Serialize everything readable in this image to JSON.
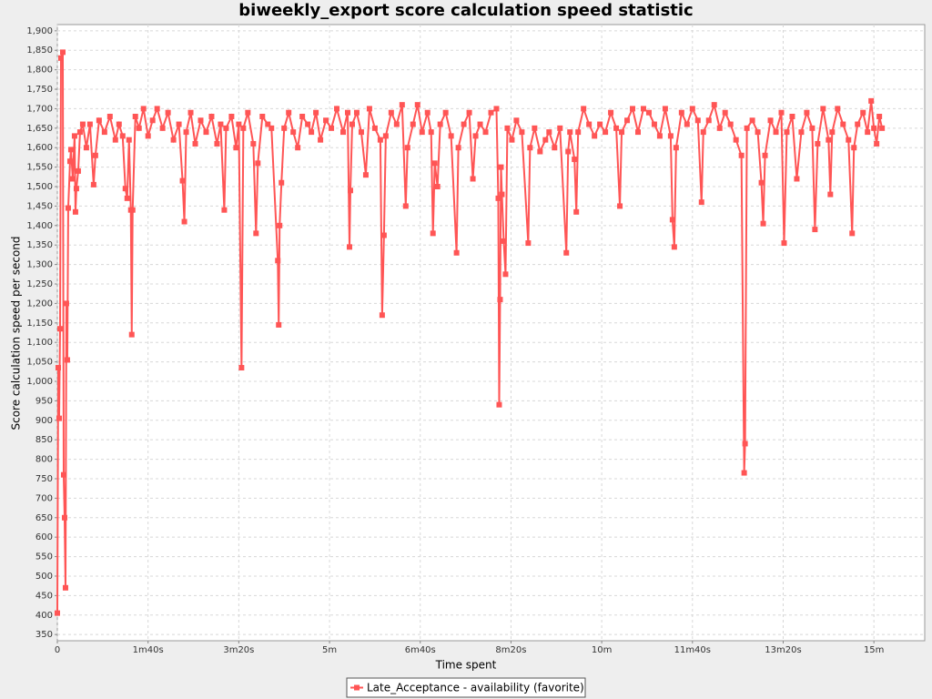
{
  "chart_data": {
    "type": "line",
    "title": "biweekly_export score calculation speed statistic",
    "xlabel": "Time spent",
    "ylabel": "Score calculation speed per second",
    "x": [
      0,
      1,
      2,
      3,
      4,
      6,
      7,
      8,
      9,
      10,
      11,
      12,
      14,
      15,
      17,
      19,
      20,
      21,
      23,
      25,
      28,
      32,
      36,
      40,
      42,
      46,
      52,
      58,
      64,
      68,
      72,
      75,
      77,
      79,
      81,
      82,
      83,
      86,
      90,
      95,
      100,
      105,
      110,
      116,
      122,
      128,
      134,
      138,
      140,
      142,
      147,
      152,
      158,
      164,
      170,
      176,
      180,
      184,
      186,
      192,
      197,
      200,
      203,
      205,
      210,
      216,
      219,
      221,
      226,
      232,
      236,
      243,
      244,
      245,
      247,
      250,
      255,
      260,
      265,
      270,
      276,
      280,
      285,
      290,
      296,
      302,
      308,
      315,
      320,
      322,
      323,
      325,
      330,
      335,
      340,
      344,
      350,
      356,
      358,
      360,
      362,
      368,
      374,
      380,
      384,
      386,
      392,
      397,
      402,
      408,
      412,
      414,
      416,
      419,
      422,
      428,
      434,
      440,
      442,
      448,
      454,
      458,
      461,
      466,
      472,
      478,
      484,
      486,
      487,
      488,
      489,
      490,
      492,
      494,
      496,
      501,
      506,
      512,
      519,
      521,
      526,
      532,
      538,
      542,
      548,
      554,
      561,
      563,
      565,
      570,
      572,
      574,
      580,
      586,
      592,
      598,
      604,
      610,
      616,
      620,
      622,
      628,
      634,
      640,
      646,
      652,
      658,
      664,
      670,
      676,
      678,
      680,
      682,
      688,
      694,
      700,
      706,
      710,
      712,
      718,
      724,
      730,
      736,
      742,
      748,
      754,
      757,
      758,
      760,
      766,
      772,
      776,
      778,
      780,
      786,
      792,
      798,
      801,
      804,
      810,
      815,
      820,
      826,
      832,
      835,
      838,
      844,
      850,
      852,
      854,
      860,
      866,
      872,
      876,
      878,
      882,
      888,
      893,
      897,
      900,
      903,
      906,
      909
    ],
    "series": [
      {
        "name": "Late_Acceptance - availability (favorite)",
        "color": "#ff5555",
        "values": [
          405,
          1035,
          905,
          1135,
          1830,
          1845,
          760,
          650,
          470,
          1200,
          1055,
          1445,
          1565,
          1595,
          1520,
          1630,
          1435,
          1495,
          1540,
          1640,
          1660,
          1600,
          1660,
          1505,
          1580,
          1670,
          1640,
          1680,
          1620,
          1660,
          1630,
          1495,
          1470,
          1620,
          1440,
          1120,
          1440,
          1680,
          1650,
          1700,
          1630,
          1670,
          1700,
          1650,
          1690,
          1620,
          1660,
          1515,
          1410,
          1640,
          1690,
          1610,
          1670,
          1640,
          1680,
          1610,
          1660,
          1440,
          1650,
          1680,
          1600,
          1660,
          1035,
          1650,
          1690,
          1610,
          1380,
          1560,
          1680,
          1660,
          1650,
          1310,
          1145,
          1400,
          1510,
          1650,
          1690,
          1640,
          1600,
          1680,
          1660,
          1640,
          1690,
          1620,
          1670,
          1650,
          1700,
          1640,
          1690,
          1345,
          1490,
          1660,
          1690,
          1640,
          1530,
          1700,
          1650,
          1620,
          1170,
          1375,
          1630,
          1690,
          1660,
          1710,
          1450,
          1600,
          1660,
          1710,
          1640,
          1690,
          1640,
          1380,
          1560,
          1500,
          1660,
          1690,
          1630,
          1330,
          1600,
          1660,
          1690,
          1520,
          1630,
          1660,
          1640,
          1690,
          1700,
          1470,
          940,
          1210,
          1550,
          1480,
          1360,
          1275,
          1650,
          1620,
          1670,
          1640,
          1355,
          1600,
          1650,
          1590,
          1620,
          1640,
          1600,
          1650,
          1330,
          1590,
          1640,
          1570,
          1435,
          1640,
          1700,
          1660,
          1630,
          1660,
          1640,
          1690,
          1650,
          1450,
          1640,
          1670,
          1700,
          1640,
          1700,
          1690,
          1660,
          1630,
          1700,
          1630,
          1415,
          1345,
          1600,
          1690,
          1660,
          1700,
          1670,
          1460,
          1640,
          1670,
          1710,
          1650,
          1690,
          1660,
          1620,
          1580,
          765,
          840,
          1650,
          1670,
          1640,
          1510,
          1405,
          1580,
          1670,
          1640,
          1690,
          1355,
          1640,
          1680,
          1520,
          1640,
          1690,
          1650,
          1390,
          1610,
          1700,
          1620,
          1480,
          1640,
          1700,
          1660,
          1620,
          1380,
          1600,
          1660,
          1690,
          1640,
          1720,
          1650,
          1610,
          1680,
          1650
        ]
      }
    ],
    "xlim": [
      0,
      956
    ],
    "xticks": [
      0,
      {
        "value": 100,
        "label": "1m40s"
      },
      {
        "value": 200,
        "label": "3m20s"
      },
      {
        "value": 300,
        "label": "5m"
      },
      {
        "value": 400,
        "label": "6m40s"
      },
      {
        "value": 500,
        "label": "8m20s"
      },
      {
        "value": 600,
        "label": "10m"
      },
      {
        "value": 700,
        "label": "11m40s"
      },
      {
        "value": 800,
        "label": "13m20s"
      },
      {
        "value": 900,
        "label": "15m"
      }
    ],
    "ylim": [
      334,
      1916
    ],
    "yticks": [
      350,
      400,
      450,
      500,
      550,
      600,
      650,
      700,
      750,
      800,
      850,
      900,
      950,
      {
        "value": 1000,
        "label": "1,000"
      },
      {
        "value": 1050,
        "label": "1,050"
      },
      {
        "value": 1100,
        "label": "1,100"
      },
      {
        "value": 1150,
        "label": "1,150"
      },
      {
        "value": 1200,
        "label": "1,200"
      },
      {
        "value": 1250,
        "label": "1,250"
      },
      {
        "value": 1300,
        "label": "1,300"
      },
      {
        "value": 1350,
        "label": "1,350"
      },
      {
        "value": 1400,
        "label": "1,400"
      },
      {
        "value": 1450,
        "label": "1,450"
      },
      {
        "value": 1500,
        "label": "1,500"
      },
      {
        "value": 1550,
        "label": "1,550"
      },
      {
        "value": 1600,
        "label": "1,600"
      },
      {
        "value": 1650,
        "label": "1,650"
      },
      {
        "value": 1700,
        "label": "1,700"
      },
      {
        "value": 1750,
        "label": "1,750"
      },
      {
        "value": 1800,
        "label": "1,800"
      },
      {
        "value": 1850,
        "label": "1,850"
      },
      {
        "value": 1900,
        "label": "1,900"
      }
    ],
    "grid": true,
    "legend": "bottom"
  }
}
